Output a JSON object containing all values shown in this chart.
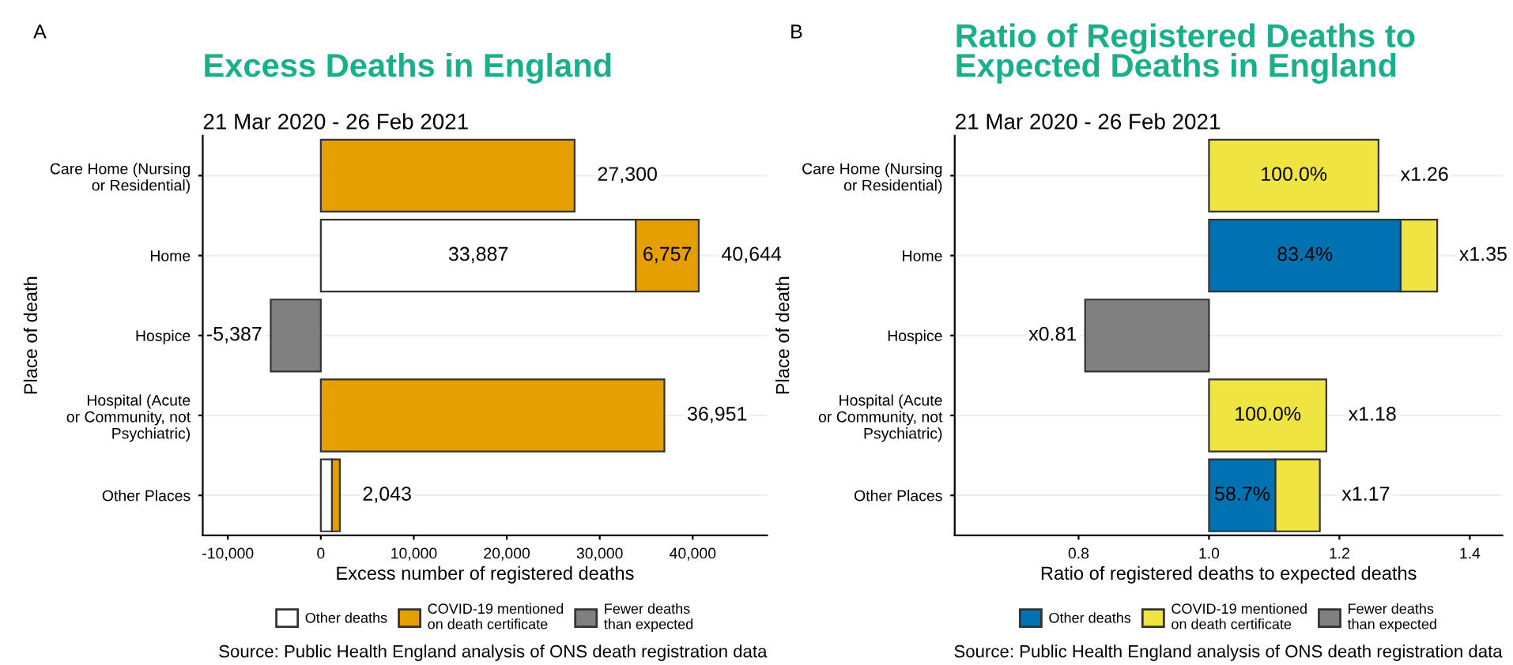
{
  "chart_data": [
    {
      "type": "bar",
      "orientation": "horizontal",
      "stacked": true,
      "title": "Excess Deaths in England",
      "subtitle": "21 Mar 2020 - 26 Feb 2021",
      "xlabel": "Excess number of registered deaths",
      "ylabel": "Place of death",
      "annotations": [
        "A",
        "Source: Public Health England analysis of ONS death registration data"
      ],
      "categories": [
        "Care Home (Nursing\nor Residential)",
        "Home",
        "Hospice",
        "Hospital (Acute\nor Community, not\nPsychiatric)",
        "Other Places"
      ],
      "series": [
        {
          "name": "Other deaths",
          "color": "#ffffff",
          "values": [
            null,
            33887,
            null,
            null,
            1200
          ],
          "value_labels": [
            null,
            "33,887",
            null,
            null,
            null
          ]
        },
        {
          "name": "COVID-19 mentioned\non death certificate",
          "color": "#e69f00",
          "values": [
            27300,
            6757,
            null,
            36951,
            843
          ],
          "value_labels": [
            null,
            "6,757",
            null,
            null,
            null
          ]
        },
        {
          "name": "Fewer deaths\nthan expected",
          "color": "#808080",
          "values": [
            null,
            null,
            -5387,
            null,
            null
          ]
        }
      ],
      "totals": [
        "27,300",
        "40,644",
        "-5,387",
        "36,951",
        "2,043"
      ],
      "xlim": [
        -12700,
        48000
      ],
      "xticks": [
        {
          "value": -10000,
          "label": "-10,000"
        },
        0,
        {
          "value": 10000,
          "label": "10,000"
        },
        {
          "value": 20000,
          "label": "20,000"
        },
        {
          "value": 30000,
          "label": "30,000"
        },
        {
          "value": 40000,
          "label": "40,000"
        }
      ],
      "grid": "y",
      "legend": "bottom"
    },
    {
      "type": "bar",
      "orientation": "horizontal",
      "title": "Ratio of Registered Deaths to\nExpected Deaths in England",
      "subtitle": "21 Mar 2020 - 26 Feb 2021",
      "xlabel": "Ratio of registered deaths to expected deaths",
      "ylabel": "Place of death",
      "annotations": [
        "B",
        "Source: Public Health England analysis of ONS death registration data",
        {
          "text": "100.0%",
          "x": 1.13,
          "y": "Care Home (Nursing\nor Residential)"
        },
        {
          "text": "83.4%",
          "x": 1.147,
          "y": "Home"
        },
        {
          "text": "100.0%",
          "x": 1.09,
          "y": "Hospital (Acute\nor Community, not\nPsychiatric)"
        },
        {
          "text": "58.7%",
          "x": 1.051,
          "y": "Other Places"
        }
      ],
      "categories": [
        "Care Home (Nursing\nor Residential)",
        "Home",
        "Hospice",
        "Hospital (Acute\nor Community, not\nPsychiatric)",
        "Other Places"
      ],
      "series": [
        {
          "name": "Other deaths",
          "color": "#0072b2",
          "base": [
            null,
            1.0,
            null,
            null,
            1.0
          ],
          "values": [
            null,
            0.294,
            null,
            null,
            0.102
          ]
        },
        {
          "name": "COVID-19 mentioned\non death certificate",
          "color": "#f0e442",
          "base": [
            1.0,
            1.294,
            null,
            1.0,
            1.102
          ],
          "values": [
            0.26,
            0.056,
            null,
            0.18,
            0.068
          ]
        },
        {
          "name": "Fewer deaths\nthan expected",
          "color": "#808080",
          "base": [
            null,
            null,
            1.0,
            null,
            null
          ],
          "values": [
            null,
            null,
            -0.19,
            null,
            null
          ]
        }
      ],
      "totals": [
        "x1.26",
        "x1.35",
        "x0.81",
        "x1.18",
        "x1.17"
      ],
      "xlim": [
        0.61,
        1.45
      ],
      "xticks": [
        {
          "value": 0.8,
          "label": "0.8"
        },
        {
          "value": 1.0,
          "label": "1.0"
        },
        {
          "value": 1.2,
          "label": "1.2"
        },
        {
          "value": 1.4,
          "label": "1.4"
        }
      ],
      "grid": "y",
      "legend": "bottom"
    }
  ]
}
